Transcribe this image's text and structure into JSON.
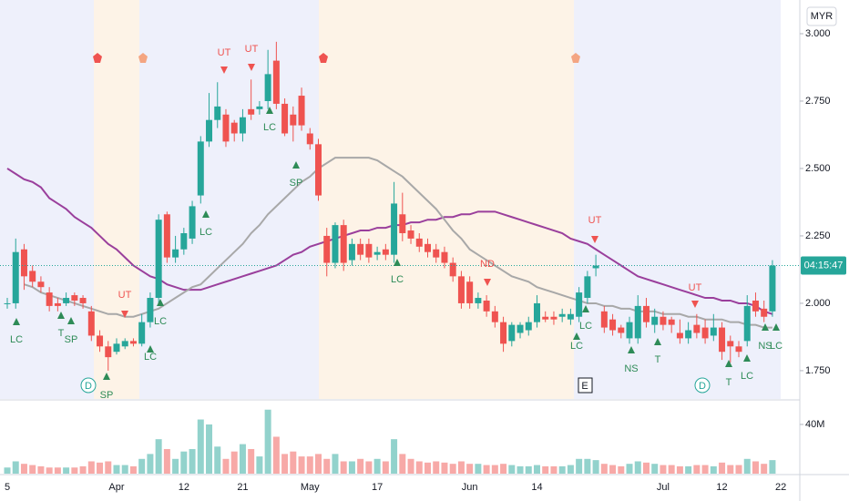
{
  "chart_data": {
    "type": "candlestick",
    "currency": "MYR",
    "countdown": "04:15:47",
    "categories": [
      "5",
      null,
      null,
      null,
      null,
      null,
      null,
      null,
      null,
      null,
      null,
      null,
      null,
      "Apr",
      null,
      null,
      null,
      null,
      null,
      null,
      null,
      "12",
      null,
      null,
      null,
      null,
      null,
      null,
      "21",
      null,
      null,
      null,
      null,
      null,
      null,
      null,
      "May",
      null,
      null,
      null,
      null,
      null,
      null,
      null,
      "17",
      null,
      null,
      null,
      null,
      null,
      null,
      null,
      null,
      null,
      null,
      "Jun",
      null,
      null,
      null,
      null,
      null,
      null,
      null,
      "14",
      null,
      null,
      null,
      null,
      null,
      null,
      null,
      null,
      null,
      null,
      null,
      null,
      null,
      null,
      "Jul",
      null,
      null,
      null,
      null,
      null,
      null,
      "12",
      null,
      null,
      null,
      null,
      null,
      null,
      "22"
    ],
    "open": [
      2.0,
      2.0,
      2.2,
      2.12,
      2.08,
      2.04,
      2.0,
      2.0,
      2.03,
      2.02,
      1.97,
      1.88,
      1.84,
      1.82,
      1.84,
      1.86,
      1.85,
      1.93,
      2.02,
      2.33,
      2.17,
      2.2,
      2.24,
      2.4,
      2.6,
      2.68,
      2.7,
      2.67,
      2.63,
      2.72,
      2.72,
      2.75,
      2.9,
      2.74,
      2.7,
      2.77,
      2.63,
      2.59,
      2.25,
      2.15,
      2.29,
      2.16,
      2.22,
      2.22,
      2.18,
      2.2,
      2.18,
      2.33,
      2.27,
      2.24,
      2.22,
      2.2,
      2.19,
      2.15,
      2.1,
      2.08,
      2.0,
      2.01,
      1.97,
      1.93,
      1.86,
      1.89,
      1.9,
      1.93,
      1.95,
      1.95,
      1.95,
      1.94,
      1.95,
      2.02,
      2.13,
      1.97,
      1.94,
      1.91,
      1.87,
      1.87,
      1.99,
      1.92,
      1.95,
      1.94,
      1.89,
      1.87,
      1.92,
      1.91,
      1.88,
      1.91,
      1.86,
      1.84,
      1.86,
      2.01,
      1.98,
      1.97,
      null
    ],
    "high": [
      2.02,
      2.24,
      2.22,
      2.14,
      2.1,
      2.06,
      2.02,
      2.04,
      2.04,
      2.03,
      1.99,
      1.9,
      1.86,
      1.87,
      1.87,
      1.87,
      1.96,
      2.04,
      2.33,
      2.34,
      2.25,
      2.28,
      2.38,
      2.62,
      2.78,
      2.82,
      2.72,
      2.68,
      2.72,
      2.83,
      2.75,
      2.94,
      2.97,
      2.76,
      2.73,
      2.8,
      2.65,
      2.61,
      2.28,
      2.3,
      2.31,
      2.24,
      2.24,
      2.24,
      2.21,
      2.22,
      2.45,
      2.41,
      2.29,
      2.26,
      2.24,
      2.22,
      2.21,
      2.17,
      2.12,
      2.1,
      2.04,
      2.03,
      1.99,
      1.95,
      1.93,
      1.93,
      1.95,
      2.03,
      1.97,
      1.97,
      1.98,
      1.98,
      2.06,
      2.12,
      2.18,
      1.99,
      1.96,
      1.92,
      1.95,
      2.03,
      2.02,
      1.98,
      1.97,
      1.95,
      1.94,
      1.93,
      1.96,
      1.94,
      1.96,
      1.93,
      1.88,
      1.86,
      2.03,
      2.04,
      2.01,
      2.16,
      null
    ],
    "low": [
      1.98,
      1.98,
      2.05,
      2.06,
      2.04,
      1.97,
      1.97,
      1.99,
      1.99,
      1.98,
      1.86,
      1.82,
      1.75,
      1.81,
      1.83,
      1.84,
      1.84,
      1.91,
      2.0,
      2.15,
      2.15,
      2.18,
      2.22,
      2.37,
      2.58,
      2.65,
      2.58,
      2.6,
      2.6,
      2.68,
      2.7,
      2.72,
      2.72,
      2.62,
      2.6,
      2.64,
      2.57,
      2.38,
      2.1,
      2.13,
      2.12,
      2.14,
      2.16,
      2.15,
      2.16,
      2.16,
      2.15,
      2.23,
      2.22,
      2.19,
      2.17,
      2.15,
      2.13,
      2.08,
      1.98,
      1.98,
      1.98,
      1.95,
      1.91,
      1.82,
      1.84,
      1.87,
      1.88,
      1.91,
      1.93,
      1.92,
      1.93,
      1.92,
      1.93,
      2.0,
      2.1,
      1.89,
      1.88,
      1.87,
      1.85,
      1.85,
      1.91,
      1.89,
      1.9,
      1.89,
      1.85,
      1.85,
      1.87,
      1.85,
      1.86,
      1.79,
      1.78,
      1.8,
      1.84,
      1.95,
      1.93,
      1.95,
      null
    ],
    "close": [
      2.0,
      2.19,
      2.1,
      2.08,
      2.06,
      1.99,
      1.99,
      2.02,
      2.01,
      2.0,
      1.88,
      1.84,
      1.8,
      1.85,
      1.86,
      1.85,
      1.93,
      2.02,
      2.31,
      2.17,
      2.2,
      2.26,
      2.36,
      2.6,
      2.68,
      2.73,
      2.6,
      2.63,
      2.69,
      2.7,
      2.73,
      2.85,
      2.74,
      2.63,
      2.66,
      2.66,
      2.59,
      2.4,
      2.15,
      2.29,
      2.15,
      2.22,
      2.18,
      2.17,
      2.19,
      2.18,
      2.37,
      2.26,
      2.24,
      2.21,
      2.19,
      2.17,
      2.15,
      2.1,
      2.0,
      2.0,
      2.02,
      1.97,
      1.93,
      1.85,
      1.92,
      1.92,
      1.93,
      2.0,
      1.94,
      1.94,
      1.96,
      1.96,
      2.04,
      2.1,
      2.14,
      1.91,
      1.9,
      1.89,
      1.93,
      1.99,
      1.93,
      1.95,
      1.92,
      1.92,
      1.87,
      1.9,
      1.89,
      1.87,
      1.91,
      1.82,
      1.84,
      1.82,
      1.99,
      1.97,
      1.95,
      2.14,
      null
    ],
    "volume": [
      5000000.0,
      10000000.0,
      8000000.0,
      7000000.0,
      6000000.0,
      5000000.0,
      5000000.0,
      5000000.0,
      5000000.0,
      6000000.0,
      10000000.0,
      9000000.0,
      10000000.0,
      7000000.0,
      7000000.0,
      6000000.0,
      12000000.0,
      16000000.0,
      28000000.0,
      20000000.0,
      12000000.0,
      18000000.0,
      20000000.0,
      44000000.0,
      40000000.0,
      22000000.0,
      12000000.0,
      18000000.0,
      24000000.0,
      20000000.0,
      14000000.0,
      52000000.0,
      30000000.0,
      16000000.0,
      18000000.0,
      14000000.0,
      14000000.0,
      16000000.0,
      12000000.0,
      16000000.0,
      10000000.0,
      10000000.0,
      12000000.0,
      10000000.0,
      12000000.0,
      10000000.0,
      28000000.0,
      16000000.0,
      12000000.0,
      10000000.0,
      9000000.0,
      10000000.0,
      9000000.0,
      8000000.0,
      10000000.0,
      8000000.0,
      8000000.0,
      7000000.0,
      7000000.0,
      8000000.0,
      7000000.0,
      6000000.0,
      6000000.0,
      7000000.0,
      6000000.0,
      6000000.0,
      6000000.0,
      7000000.0,
      12000000.0,
      12000000.0,
      11000000.0,
      8000000.0,
      7000000.0,
      6000000.0,
      8000000.0,
      10000000.0,
      9000000.0,
      8000000.0,
      7000000.0,
      7000000.0,
      6000000.0,
      6000000.0,
      7000000.0,
      7000000.0,
      6000000.0,
      9000000.0,
      7000000.0,
      7000000.0,
      12000000.0,
      10000000.0,
      8000000.0,
      11000000.0,
      null
    ],
    "lines": [
      {
        "color": "#9a3f9c",
        "values": [
          2.5,
          2.48,
          2.46,
          2.45,
          2.43,
          2.39,
          2.37,
          2.35,
          2.32,
          2.3,
          2.28,
          2.25,
          2.22,
          2.2,
          2.17,
          2.14,
          2.12,
          2.1,
          2.09,
          2.07,
          2.06,
          2.05,
          2.05,
          2.05,
          2.06,
          2.07,
          2.08,
          2.09,
          2.1,
          2.11,
          2.12,
          2.13,
          2.14,
          2.16,
          2.18,
          2.19,
          2.21,
          2.22,
          2.23,
          2.24,
          2.25,
          2.26,
          2.27,
          2.27,
          2.28,
          2.28,
          2.29,
          2.29,
          2.3,
          2.3,
          2.31,
          2.31,
          2.32,
          2.32,
          2.33,
          2.33,
          2.34,
          2.34,
          2.34,
          2.33,
          2.32,
          2.31,
          2.3,
          2.29,
          2.28,
          2.27,
          2.26,
          2.24,
          2.23,
          2.22,
          2.2,
          2.18,
          2.16,
          2.14,
          2.12,
          2.1,
          2.09,
          2.08,
          2.07,
          2.06,
          2.05,
          2.04,
          2.03,
          2.02,
          2.02,
          2.01,
          2.01,
          2.0,
          2.0,
          1.99,
          1.97,
          1.96,
          null
        ]
      },
      {
        "color": "#a8a8a8",
        "values": [
          null,
          null,
          2.07,
          2.06,
          2.04,
          2.03,
          2.02,
          2.01,
          2.0,
          1.99,
          1.98,
          1.97,
          1.96,
          1.96,
          1.95,
          1.95,
          1.96,
          1.97,
          1.98,
          2.0,
          2.02,
          2.04,
          2.06,
          2.07,
          2.1,
          2.13,
          2.16,
          2.19,
          2.22,
          2.26,
          2.29,
          2.33,
          2.36,
          2.39,
          2.42,
          2.45,
          2.47,
          2.5,
          2.52,
          2.54,
          2.54,
          2.54,
          2.54,
          2.54,
          2.53,
          2.51,
          2.49,
          2.47,
          2.44,
          2.41,
          2.38,
          2.35,
          2.31,
          2.27,
          2.24,
          2.2,
          2.18,
          2.16,
          2.14,
          2.12,
          2.1,
          2.09,
          2.08,
          2.06,
          2.05,
          2.04,
          2.03,
          2.02,
          2.01,
          2.0,
          2.0,
          1.99,
          1.99,
          1.98,
          1.98,
          1.97,
          1.97,
          1.97,
          1.96,
          1.96,
          1.96,
          1.95,
          1.95,
          1.94,
          1.94,
          1.94,
          1.93,
          1.93,
          1.92,
          1.92,
          1.91,
          1.91,
          null
        ]
      }
    ],
    "up_color": "#26a69a",
    "down_color": "#ef5350",
    "ylim": [
      1.645,
      3.125
    ],
    "yticks": [
      {
        "value": 1.75,
        "label": "1.750"
      },
      {
        "value": 2.0,
        "label": "2.000"
      },
      {
        "value": 2.25,
        "label": "2.250"
      },
      {
        "value": 2.5,
        "label": "2.500"
      },
      {
        "value": 2.75,
        "label": "2.750"
      },
      {
        "value": 3.0,
        "label": "3.000"
      }
    ],
    "volume_lim": [
      0,
      55500000.0
    ],
    "volume_ticks": [
      {
        "value": 40000000.0,
        "label": "40M"
      }
    ],
    "annotations": [
      "LC",
      "T",
      "SP",
      "SP",
      "UT",
      "LC",
      "LC",
      "LC",
      "UT",
      "UT",
      "LC",
      "SP",
      "LC",
      "ND",
      "LC",
      "LC",
      "UT",
      "NS",
      "T",
      "UT",
      "T",
      "LC",
      "NS",
      "LC"
    ],
    "events": [
      "D",
      "E",
      "D"
    ]
  }
}
